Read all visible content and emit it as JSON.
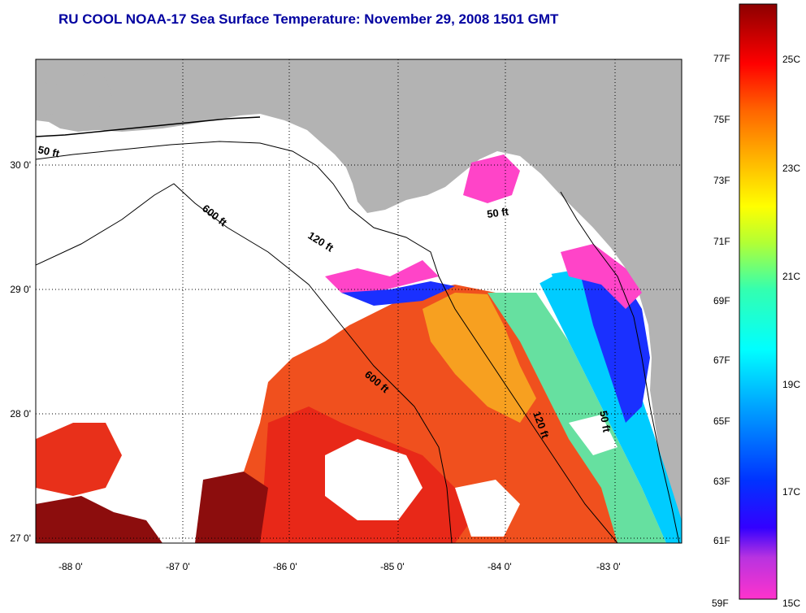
{
  "title": "RU COOL  NOAA-17  Sea Surface Temperature:  November 29, 2008 1501 GMT",
  "map": {
    "lat_labels": [
      "30 0'",
      "29 0'",
      "28 0'",
      "27 0'"
    ],
    "lon_labels": [
      "-88 0'",
      "-87 0'",
      "-86 0'",
      "-85 0'",
      "-84 0'",
      "-83 0'"
    ],
    "contour_labels": [
      "50 ft",
      "600 ft",
      "120 ft",
      "50 ft",
      "600 ft",
      "120 ft",
      "50 ft"
    ],
    "colors": {
      "land": "#b3b3b3",
      "cloud": "#ffffff",
      "warm": "#e8301a",
      "hot": "#8c0d0d",
      "cool": "#ff44c8"
    }
  },
  "colorbar": {
    "fahrenheit": [
      "77F",
      "75F",
      "73F",
      "71F",
      "69F",
      "67F",
      "65F",
      "63F",
      "61F",
      "59F"
    ],
    "celsius": [
      "25C",
      "23C",
      "21C",
      "19C",
      "17C",
      "15C"
    ]
  }
}
